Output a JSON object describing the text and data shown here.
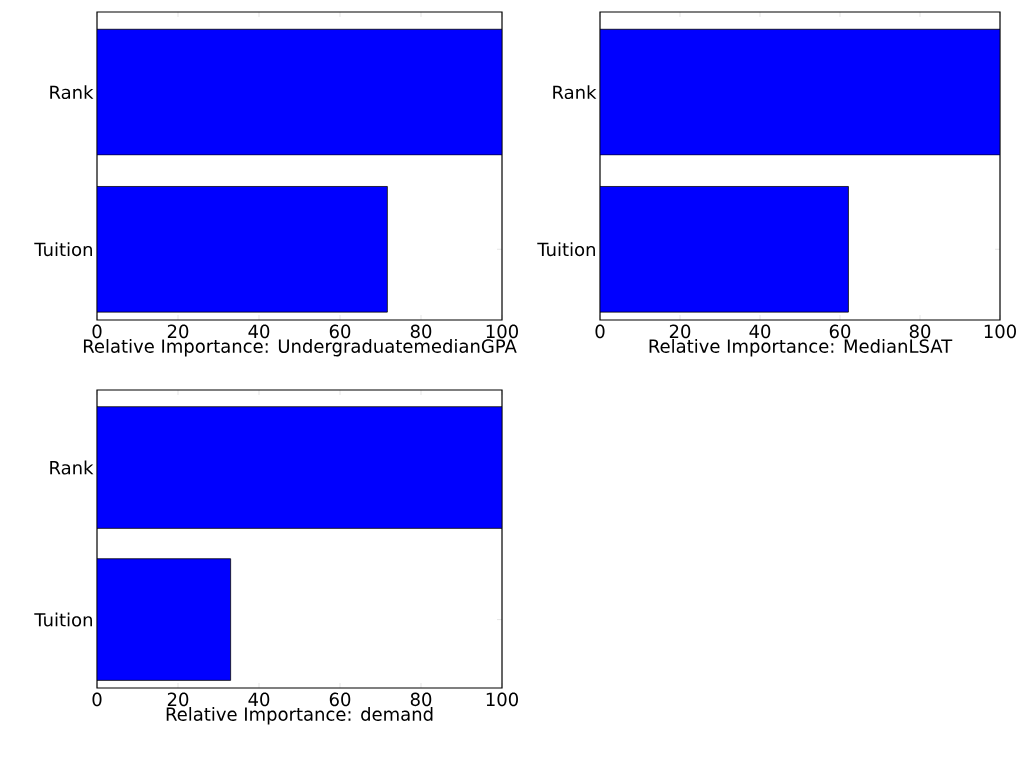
{
  "chart_data": [
    {
      "type": "bar",
      "orientation": "horizontal",
      "categories": [
        "Rank",
        "Tuition"
      ],
      "values": [
        100,
        71.7
      ],
      "color": "#0000ff",
      "xlim": [
        0,
        100
      ],
      "xticks": [
        0,
        20,
        40,
        60,
        80,
        100
      ],
      "xlabel": "Relative Importance: UndergraduatemedianGPA"
    },
    {
      "type": "bar",
      "orientation": "horizontal",
      "categories": [
        "Rank",
        "Tuition"
      ],
      "values": [
        100,
        62.1
      ],
      "color": "#0000ff",
      "xlim": [
        0,
        100
      ],
      "xticks": [
        0,
        20,
        40,
        60,
        80,
        100
      ],
      "xlabel": "Relative Importance: MedianLSAT"
    },
    {
      "type": "bar",
      "orientation": "horizontal",
      "categories": [
        "Rank",
        "Tuition"
      ],
      "values": [
        100,
        33.0
      ],
      "color": "#0000ff",
      "xlim": [
        0,
        100
      ],
      "xticks": [
        0,
        20,
        40,
        60,
        80,
        100
      ],
      "xlabel": "Relative Importance: demand"
    }
  ]
}
